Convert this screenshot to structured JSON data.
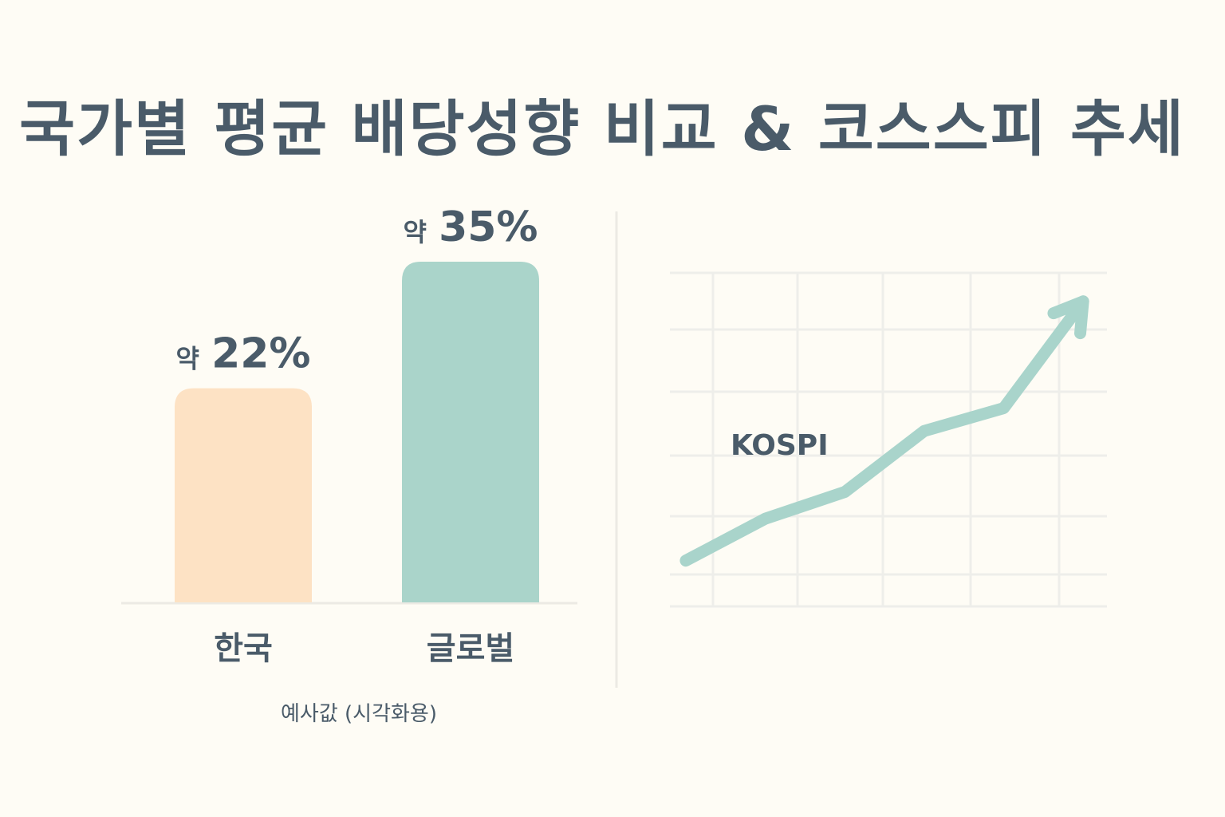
{
  "title": "국가별 평균 배당성향 비교 & 코스스피 추세",
  "note": "예사값 (시각화용)",
  "colors": {
    "background": "#fefcf5",
    "korea_bar": "#fde2c4",
    "global_bar": "#aad4ca",
    "kospi_line": "#a9d4cb",
    "grid": "#eeeeea",
    "text": "#4a5b69"
  },
  "chart_data": [
    {
      "type": "bar",
      "title": "",
      "categories": [
        "한국",
        "글로벌"
      ],
      "values": [
        22,
        35
      ],
      "value_labels": [
        {
          "prefix": "약",
          "value": "22%"
        },
        {
          "prefix": "약",
          "value": "35%"
        }
      ],
      "unit": "%",
      "ylim": [
        0,
        50
      ],
      "grid": false
    },
    {
      "type": "line",
      "series": [
        {
          "name": "KOSPI",
          "x": [
            0,
            1,
            2,
            3,
            4,
            5
          ],
          "values": [
            1.2,
            2.3,
            3.0,
            4.6,
            5.2,
            8.0
          ]
        }
      ],
      "grid": true,
      "arrow_end": true,
      "ylim": [
        0,
        9
      ],
      "xlim": [
        -0.2,
        5.3
      ]
    }
  ]
}
